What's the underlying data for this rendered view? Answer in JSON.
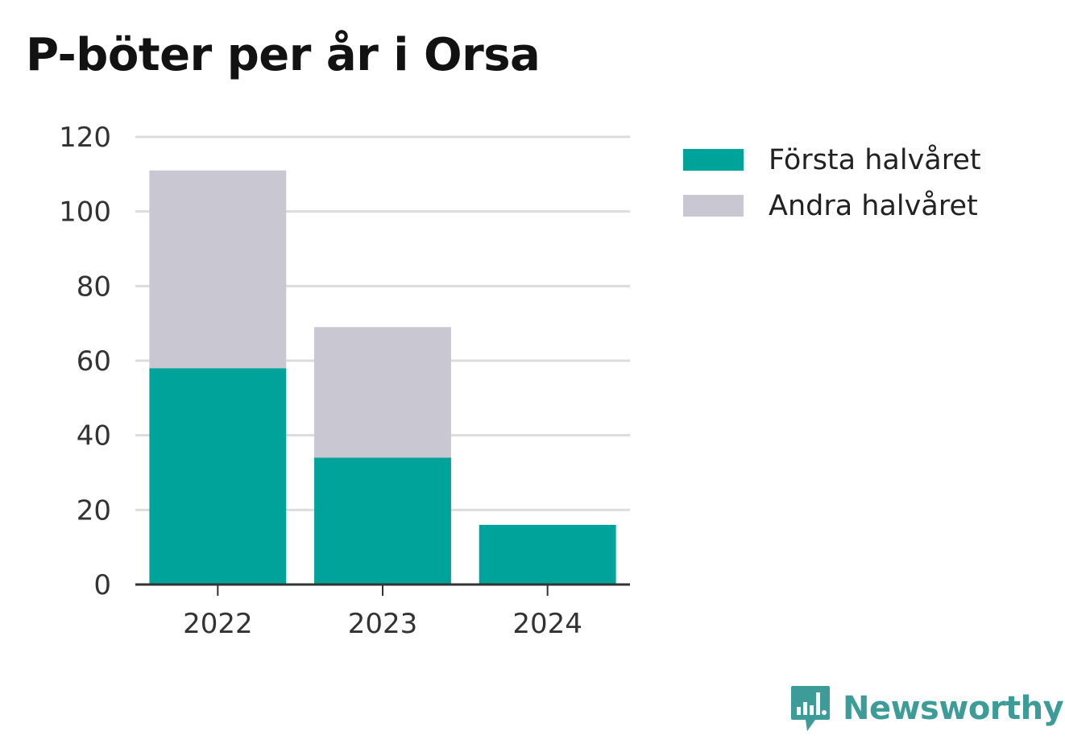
{
  "chart_data": {
    "type": "bar",
    "stacked": true,
    "title": "P-böter per år i Orsa",
    "xlabel": "",
    "ylabel": "",
    "categories": [
      "2022",
      "2023",
      "2024"
    ],
    "series": [
      {
        "name": "Första halvåret",
        "values": [
          58,
          34,
          16
        ],
        "color": "#00a39a"
      },
      {
        "name": "Andra halvåret",
        "values": [
          53,
          35,
          0
        ],
        "color": "#c8c7d2"
      }
    ],
    "ylim": [
      0,
      120
    ],
    "yticks": [
      "0",
      "20",
      "40",
      "60",
      "80",
      "100",
      "120"
    ],
    "grid": true,
    "legend_position": "right"
  },
  "brand": {
    "name": "Newsworthy",
    "icon": "newsworthy-logo-icon",
    "color": "#3d9c97"
  }
}
